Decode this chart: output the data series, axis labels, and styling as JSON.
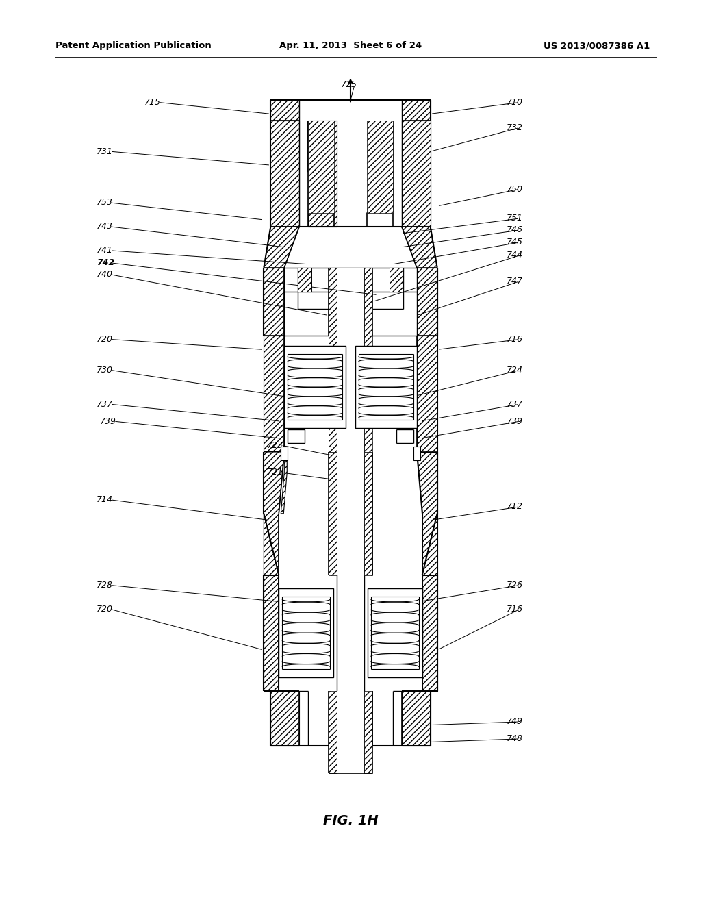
{
  "header_left": "Patent Application Publication",
  "header_mid": "Apr. 11, 2013  Sheet 6 of 24",
  "header_right": "US 2013/0087386 A1",
  "figure_label": "FIG. 1H",
  "bg_color": "#ffffff"
}
